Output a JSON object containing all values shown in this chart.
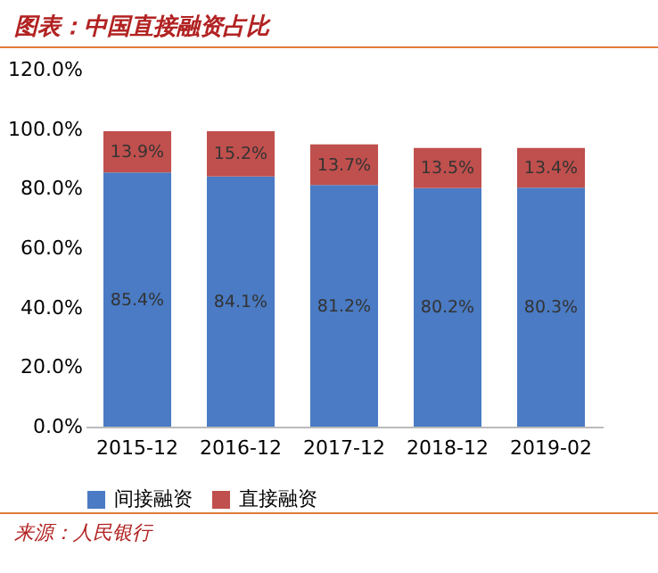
{
  "chart_data": {
    "type": "bar",
    "title": "图表：中国直接融资占比",
    "categories": [
      "2015-12",
      "2016-12",
      "2017-12",
      "2018-12",
      "2019-02"
    ],
    "stacked": true,
    "series": [
      {
        "name": "间接融资",
        "color": "#4a7bc4",
        "values": [
          85.4,
          84.1,
          81.2,
          80.2,
          80.3
        ],
        "value_labels": [
          "85.4%",
          "84.1%",
          "81.2%",
          "80.2%",
          "80.3%"
        ]
      },
      {
        "name": "直接融资",
        "color": "#c0504d",
        "values": [
          13.9,
          15.2,
          13.7,
          13.5,
          13.4
        ],
        "value_labels": [
          "13.9%",
          "15.2%",
          "13.7%",
          "13.5%",
          "13.4%"
        ]
      }
    ],
    "ylim": [
      0,
      120
    ],
    "yticks": [
      {
        "value": 0,
        "label": "0.0%"
      },
      {
        "value": 20,
        "label": "20.0%"
      },
      {
        "value": 40,
        "label": "40.0%"
      },
      {
        "value": 60,
        "label": "60.0%"
      },
      {
        "value": 80,
        "label": "80.0%"
      },
      {
        "value": 100,
        "label": "100.0%"
      },
      {
        "value": 120,
        "label": "120.0%"
      }
    ],
    "legend": "bottom",
    "annotations": [
      "来源：人民银行"
    ]
  }
}
